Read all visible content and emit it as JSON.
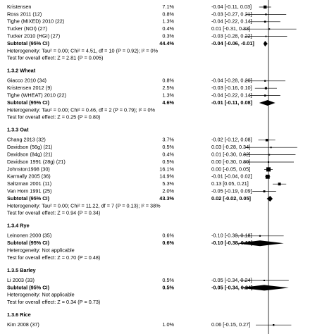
{
  "rows": [
    {
      "kind": "study",
      "study": "Kristensen",
      "weight": 7.1,
      "weight_label": "7.1%",
      "estimate": -0.04,
      "lower": -0.11,
      "upper": 0.03,
      "ci_label": "-0.04 [-0.11, 0.03]"
    },
    {
      "kind": "study",
      "study": "Ross 2011 (12)",
      "weight": 0.8,
      "weight_label": "0.8%",
      "estimate": -0.03,
      "lower": -0.27,
      "upper": 0.21,
      "ci_label": "-0.03 [-0.27, 0.21]"
    },
    {
      "kind": "study",
      "study": "Tighe (MIXED) 2010 (22)",
      "weight": 1.3,
      "weight_label": "1.3%",
      "estimate": -0.04,
      "lower": -0.22,
      "upper": 0.14,
      "ci_label": "-0.04 [-0.22, 0.14]"
    },
    {
      "kind": "study",
      "study": "Tucker (NOI) (27)",
      "weight": 0.4,
      "weight_label": "0.4%",
      "estimate": 0.01,
      "lower": -0.31,
      "upper": 0.33,
      "ci_label": "0.01 [-0.31, 0.33]"
    },
    {
      "kind": "study",
      "study": "Tucker 2010 (HGI) (27)",
      "weight": 0.3,
      "weight_label": "0.3%",
      "estimate": -0.03,
      "lower": -0.28,
      "upper": 0.22,
      "ci_label": "-0.03 [-0.28, 0.22]"
    },
    {
      "kind": "subtotal",
      "study": "Subtotal (95% CI)",
      "weight": 44.4,
      "weight_label": "44.4%",
      "estimate": -0.04,
      "lower": -0.06,
      "upper": -0.01,
      "ci_label": "-0.04 [-0.06, -0.01]"
    },
    {
      "kind": "note",
      "text": "Heterogeneity: Tau² = 0.00; Chi² = 4.51, df = 10 (P = 0.92); I² = 0%"
    },
    {
      "kind": "note",
      "text": "Test for overall effect: Z = 2.81 (P = 0.005)"
    },
    {
      "kind": "heading",
      "text": "1.3.2 Wheat"
    },
    {
      "kind": "study",
      "study": "Giacco 2010 (34)",
      "weight": 0.8,
      "weight_label": "0.8%",
      "estimate": -0.04,
      "lower": -0.28,
      "upper": 0.2,
      "ci_label": "-0.04 [-0.28, 0.20]"
    },
    {
      "kind": "study",
      "study": "Kristensen 2012 (9)",
      "weight": 2.5,
      "weight_label": "2.5%",
      "estimate": -0.03,
      "lower": -0.16,
      "upper": 0.1,
      "ci_label": "-0.03 [-0.16, 0.10]"
    },
    {
      "kind": "study",
      "study": "Tighe (WHEAT) 2010 (22)",
      "weight": 1.3,
      "weight_label": "1.3%",
      "estimate": -0.04,
      "lower": -0.22,
      "upper": 0.14,
      "ci_label": "-0.04 [-0.22, 0.14]"
    },
    {
      "kind": "subtotal",
      "study": "Subtotal (95% CI)",
      "weight": 4.6,
      "weight_label": "4.6%",
      "estimate": -0.01,
      "lower": -0.11,
      "upper": 0.08,
      "ci_label": "-0.01 [-0.11, 0.08]"
    },
    {
      "kind": "note",
      "text": "Heterogeneity: Tau² = 0.00; Chi² = 0.46, df = 2 (P = 0.79); I² = 0%"
    },
    {
      "kind": "note",
      "text": "Test for overall effect: Z = 0.25 (P = 0.80)"
    },
    {
      "kind": "heading",
      "text": "1.3.3 Oat"
    },
    {
      "kind": "study",
      "study": "Chang 2013 (32)",
      "weight": 3.7,
      "weight_label": "3.7%",
      "estimate": -0.02,
      "lower": -0.12,
      "upper": 0.08,
      "ci_label": "-0.02 [-0.12, 0.08]"
    },
    {
      "kind": "study",
      "study": "Davidson (56g) (21)",
      "weight": 0.5,
      "weight_label": "0.5%",
      "estimate": 0.03,
      "lower": -0.28,
      "upper": 0.34,
      "ci_label": "0.03 [-0.28, 0.34]"
    },
    {
      "kind": "study",
      "study": "Davidson (84g) (21)",
      "weight": 0.4,
      "weight_label": "0.4%",
      "estimate": 0.01,
      "lower": -0.3,
      "upper": 0.32,
      "ci_label": "0.01 [-0.30, 0.32]"
    },
    {
      "kind": "study",
      "study": "Davidson 1991 (28g) (21)",
      "weight": 0.5,
      "weight_label": "0.5%",
      "estimate": 0.0,
      "lower": -0.3,
      "upper": 0.3,
      "ci_label": "0.00 [-0.30, 0.30]"
    },
    {
      "kind": "study",
      "study": "Johnston1998 (30)",
      "weight": 16.1,
      "weight_label": "16.1%",
      "estimate": 0.0,
      "lower": -0.05,
      "upper": 0.05,
      "ci_label": "0.00 [-0.05, 0.05]"
    },
    {
      "kind": "study",
      "study": "Karmally 2005 (36)",
      "weight": 14.9,
      "weight_label": "14.9%",
      "estimate": -0.01,
      "lower": -0.04,
      "upper": 0.02,
      "ci_label": "-0.01 [-0.04, 0.02]"
    },
    {
      "kind": "study",
      "study": "Saltzman 2001 (11)",
      "weight": 5.3,
      "weight_label": "5.3%",
      "estimate": 0.13,
      "lower": 0.05,
      "upper": 0.21,
      "ci_label": "0.13 [0.05, 0.21]"
    },
    {
      "kind": "study",
      "study": "Van Horn 1991 (25)",
      "weight": 2.0,
      "weight_label": "2.0%",
      "estimate": -0.05,
      "lower": -0.19,
      "upper": 0.09,
      "ci_label": "-0.05 [-0.19, 0.09]"
    },
    {
      "kind": "subtotal",
      "study": "Subtotal (95% CI)",
      "weight": 43.3,
      "weight_label": "43.3%",
      "estimate": 0.02,
      "lower": -0.02,
      "upper": 0.05,
      "ci_label": "0.02 [-0.02, 0.05]"
    },
    {
      "kind": "note",
      "text": "Heterogeneity: Tau² = 0.00; Chi² = 11.22, df = 7 (P = 0.13); I² = 38%"
    },
    {
      "kind": "note",
      "text": "Test for overall effect: Z = 0.94 (P = 0.34)"
    },
    {
      "kind": "heading",
      "text": "1.3.4 Rye"
    },
    {
      "kind": "study",
      "study": "Leinonen 2000 (35)",
      "weight": 0.6,
      "weight_label": "0.6%",
      "estimate": -0.1,
      "lower": -0.38,
      "upper": 0.18,
      "ci_label": "-0.10 [-0.38, 0.18]"
    },
    {
      "kind": "subtotal",
      "study": "Subtotal (95% CI)",
      "weight": 0.6,
      "weight_label": "0.6%",
      "estimate": -0.1,
      "lower": -0.38,
      "upper": 0.18,
      "ci_label": "-0.10 [-0.38, 0.18]"
    },
    {
      "kind": "note",
      "text": "Heterogeneity: Not applicable"
    },
    {
      "kind": "note",
      "text": "Test for overall effect: Z = 0.70 (P = 0.48)"
    },
    {
      "kind": "heading",
      "text": "1.3.5 Barley"
    },
    {
      "kind": "study",
      "study": "Li 2003 (33)",
      "weight": 0.5,
      "weight_label": "0.5%",
      "estimate": -0.05,
      "lower": -0.34,
      "upper": 0.24,
      "ci_label": "-0.05 [-0.34, 0.24]"
    },
    {
      "kind": "subtotal",
      "study": "Subtotal (95% CI)",
      "weight": 0.5,
      "weight_label": "0.5%",
      "estimate": -0.05,
      "lower": -0.34,
      "upper": 0.24,
      "ci_label": "-0.05 [-0.34, 0.24]"
    },
    {
      "kind": "note",
      "text": "Heterogeneity: Not applicable"
    },
    {
      "kind": "note",
      "text": "Test for overall effect: Z = 0.34 (P = 0.73)"
    },
    {
      "kind": "heading",
      "text": "1.3.6 Rice"
    },
    {
      "kind": "study",
      "study": "Kim 2008 (37)",
      "weight": 1.0,
      "weight_label": "1.0%",
      "estimate": 0.06,
      "lower": -0.15,
      "upper": 0.27,
      "ci_label": "0.06 [-0.15, 0.27]"
    }
  ]
}
